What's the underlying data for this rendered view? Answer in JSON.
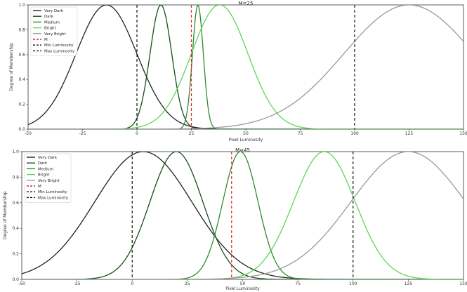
{
  "chart_data": [
    {
      "type": "line",
      "title": "M=25",
      "xlabel": "Pixel Luminosity",
      "ylabel": "Degree of Membership",
      "xlim": [
        -50,
        150
      ],
      "ylim": [
        0,
        1.0
      ],
      "xticks": [
        -50,
        -25,
        0,
        25,
        50,
        75,
        100,
        125,
        150
      ],
      "yticks": [
        0.0,
        0.2,
        0.4,
        0.6,
        0.8,
        1.0
      ],
      "grid": false,
      "legend_position": "top-left",
      "series": [
        {
          "name": "Very Dark",
          "kind": "gaussian",
          "mean": -14,
          "sigma": 14,
          "color": "#222222",
          "dash": "solid"
        },
        {
          "name": "Dark",
          "kind": "gaussian",
          "mean": 11,
          "sigma": 5,
          "color": "#1a4d1a",
          "dash": "solid"
        },
        {
          "name": "Medium",
          "kind": "gaussian",
          "mean": 28,
          "sigma": 2.5,
          "color": "#2e8b2e",
          "dash": "solid"
        },
        {
          "name": "Bright",
          "kind": "gaussian",
          "mean": 38,
          "sigma": 13,
          "color": "#5cd65c",
          "dash": "solid"
        },
        {
          "name": "Very Bright",
          "kind": "gaussian",
          "mean": 125,
          "sigma": 30,
          "color": "#999999",
          "dash": "solid"
        },
        {
          "name": "M",
          "kind": "vline",
          "x": 25,
          "color": "#e02020",
          "dash": "dashed"
        },
        {
          "name": "Min Luminosity",
          "kind": "vline",
          "x": 0,
          "color": "#111111",
          "dash": "dashed"
        },
        {
          "name": "Max Luminosity",
          "kind": "vline",
          "x": 100,
          "color": "#111111",
          "dash": "dashed"
        }
      ]
    },
    {
      "type": "line",
      "title": "M=45",
      "xlabel": "Pixel Luminosity",
      "ylabel": "Degree of Membership",
      "xlim": [
        -50,
        150
      ],
      "ylim": [
        0,
        1.0
      ],
      "xticks": [
        -50,
        -25,
        0,
        25,
        50,
        75,
        100,
        125,
        150
      ],
      "yticks": [
        0.0,
        0.2,
        0.4,
        0.6,
        0.8,
        1.0
      ],
      "grid": false,
      "legend_position": "top-left",
      "series": [
        {
          "name": "Very Dark",
          "kind": "gaussian",
          "mean": 5,
          "sigma": 22,
          "color": "#222222",
          "dash": "solid"
        },
        {
          "name": "Dark",
          "kind": "gaussian",
          "mean": 20,
          "sigma": 12,
          "color": "#1a4d1a",
          "dash": "solid"
        },
        {
          "name": "Medium",
          "kind": "gaussian",
          "mean": 49,
          "sigma": 8,
          "color": "#2e8b2e",
          "dash": "solid"
        },
        {
          "name": "Bright",
          "kind": "gaussian",
          "mean": 87,
          "sigma": 14,
          "color": "#5cd65c",
          "dash": "solid"
        },
        {
          "name": "Very Bright",
          "kind": "gaussian",
          "mean": 125,
          "sigma": 26,
          "color": "#999999",
          "dash": "solid"
        },
        {
          "name": "M",
          "kind": "vline",
          "x": 45,
          "color": "#e02020",
          "dash": "dashed"
        },
        {
          "name": "Min Luminosity",
          "kind": "vline",
          "x": 0,
          "color": "#111111",
          "dash": "dashed"
        },
        {
          "name": "Max Luminosity",
          "kind": "vline",
          "x": 100,
          "color": "#111111",
          "dash": "dashed"
        }
      ]
    }
  ]
}
